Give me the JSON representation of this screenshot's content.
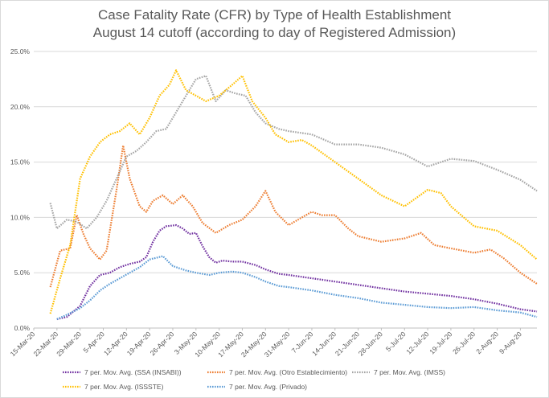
{
  "chart_data": {
    "type": "line",
    "title_line1": "Case Fatality Rate (CFR) by Type of Health Establishment",
    "title_line2": "August  14 cutoff (according to day of Registered Admission)",
    "y_tick_labels": [
      "0.0%",
      "5.0%",
      "10.0%",
      "15.0%",
      "20.0%",
      "25.0%"
    ],
    "ylim": [
      0,
      25
    ],
    "x_tick_labels": [
      "15-Mar-20",
      "22-Mar-20",
      "29-Mar-20",
      "5-Apr-20",
      "12-Apr-20",
      "19-Apr-20",
      "26-Apr-20",
      "3-May-20",
      "10-May-20",
      "17-May-20",
      "24-May-20",
      "31-May-20",
      "7-Jun-20",
      "14-Jun-20",
      "21-Jun-20",
      "28-Jun-20",
      "5-Jul-20",
      "12-Jul-20",
      "19-Jul-20",
      "26-Jul-20",
      "2-Aug-20",
      "9-Aug-20"
    ],
    "x_start": "15-Mar-20",
    "x_end": "14-Aug-20",
    "grid": "horizontal",
    "legend_position": "bottom",
    "series": [
      {
        "name": "7 per. Mov. Avg. (SSA (INSABI))",
        "color": "#7030a0",
        "points": [
          [
            "22-Mar-20",
            0.8
          ],
          [
            "25-Mar-20",
            1.0
          ],
          [
            "29-Mar-20",
            2.0
          ],
          [
            "1-Apr-20",
            3.8
          ],
          [
            "4-Apr-20",
            4.8
          ],
          [
            "7-Apr-20",
            5.0
          ],
          [
            "10-Apr-20",
            5.5
          ],
          [
            "13-Apr-20",
            5.8
          ],
          [
            "16-Apr-20",
            6.0
          ],
          [
            "18-Apr-20",
            6.4
          ],
          [
            "20-Apr-20",
            7.8
          ],
          [
            "22-Apr-20",
            8.8
          ],
          [
            "24-Apr-20",
            9.2
          ],
          [
            "27-Apr-20",
            9.3
          ],
          [
            "29-Apr-20",
            9.0
          ],
          [
            "1-May-20",
            8.5
          ],
          [
            "3-May-20",
            8.6
          ],
          [
            "5-May-20",
            7.4
          ],
          [
            "7-May-20",
            6.4
          ],
          [
            "9-May-20",
            5.9
          ],
          [
            "11-May-20",
            6.1
          ],
          [
            "14-May-20",
            6.0
          ],
          [
            "17-May-20",
            6.0
          ],
          [
            "21-May-20",
            5.7
          ],
          [
            "24-May-20",
            5.3
          ],
          [
            "28-May-20",
            4.9
          ],
          [
            "31-May-20",
            4.8
          ],
          [
            "7-Jun-20",
            4.5
          ],
          [
            "14-Jun-20",
            4.2
          ],
          [
            "21-Jun-20",
            3.9
          ],
          [
            "28-Jun-20",
            3.6
          ],
          [
            "5-Jul-20",
            3.3
          ],
          [
            "12-Jul-20",
            3.1
          ],
          [
            "19-Jul-20",
            2.9
          ],
          [
            "26-Jul-20",
            2.6
          ],
          [
            "2-Aug-20",
            2.2
          ],
          [
            "9-Aug-20",
            1.7
          ],
          [
            "14-Aug-20",
            1.5
          ]
        ]
      },
      {
        "name": "7 per. Mov. Avg. (Otro Establecimiento)",
        "color": "#ed7d31",
        "points": [
          [
            "20-Mar-20",
            3.7
          ],
          [
            "23-Mar-20",
            7.0
          ],
          [
            "26-Mar-20",
            7.2
          ],
          [
            "28-Mar-20",
            10.2
          ],
          [
            "30-Mar-20",
            8.5
          ],
          [
            "1-Apr-20",
            7.2
          ],
          [
            "4-Apr-20",
            6.2
          ],
          [
            "6-Apr-20",
            7.0
          ],
          [
            "9-Apr-20",
            12.5
          ],
          [
            "11-Apr-20",
            16.5
          ],
          [
            "13-Apr-20",
            13.5
          ],
          [
            "16-Apr-20",
            11.0
          ],
          [
            "18-Apr-20",
            10.5
          ],
          [
            "20-Apr-20",
            11.5
          ],
          [
            "23-Apr-20",
            12.0
          ],
          [
            "26-Apr-20",
            11.2
          ],
          [
            "29-Apr-20",
            12.0
          ],
          [
            "2-May-20",
            11.0
          ],
          [
            "5-May-20",
            9.5
          ],
          [
            "9-May-20",
            8.6
          ],
          [
            "13-May-20",
            9.3
          ],
          [
            "17-May-20",
            9.8
          ],
          [
            "21-May-20",
            11.0
          ],
          [
            "24-May-20",
            12.4
          ],
          [
            "27-May-20",
            10.5
          ],
          [
            "31-May-20",
            9.3
          ],
          [
            "4-Jun-20",
            10.0
          ],
          [
            "7-Jun-20",
            10.5
          ],
          [
            "10-Jun-20",
            10.2
          ],
          [
            "14-Jun-20",
            10.2
          ],
          [
            "18-Jun-20",
            9.0
          ],
          [
            "21-Jun-20",
            8.3
          ],
          [
            "28-Jun-20",
            7.8
          ],
          [
            "5-Jul-20",
            8.1
          ],
          [
            "10-Jul-20",
            8.6
          ],
          [
            "14-Jul-20",
            7.5
          ],
          [
            "19-Jul-20",
            7.2
          ],
          [
            "26-Jul-20",
            6.8
          ],
          [
            "31-Jul-20",
            7.1
          ],
          [
            "4-Aug-20",
            6.3
          ],
          [
            "9-Aug-20",
            5.0
          ],
          [
            "14-Aug-20",
            4.0
          ]
        ]
      },
      {
        "name": "7 per. Mov. Avg. (IMSS)",
        "color": "#a5a5a5",
        "points": [
          [
            "20-Mar-20",
            11.3
          ],
          [
            "22-Mar-20",
            9.0
          ],
          [
            "25-Mar-20",
            9.8
          ],
          [
            "28-Mar-20",
            9.6
          ],
          [
            "31-Mar-20",
            9.0
          ],
          [
            "3-Apr-20",
            10.0
          ],
          [
            "6-Apr-20",
            11.5
          ],
          [
            "9-Apr-20",
            13.5
          ],
          [
            "12-Apr-20",
            15.5
          ],
          [
            "15-Apr-20",
            16.0
          ],
          [
            "18-Apr-20",
            16.8
          ],
          [
            "21-Apr-20",
            17.8
          ],
          [
            "24-Apr-20",
            18.0
          ],
          [
            "27-Apr-20",
            19.5
          ],
          [
            "30-Apr-20",
            21.0
          ],
          [
            "3-May-20",
            22.5
          ],
          [
            "6-May-20",
            22.8
          ],
          [
            "9-May-20",
            20.5
          ],
          [
            "12-May-20",
            21.5
          ],
          [
            "15-May-20",
            21.2
          ],
          [
            "18-May-20",
            21.0
          ],
          [
            "21-May-20",
            19.5
          ],
          [
            "24-May-20",
            18.5
          ],
          [
            "28-May-20",
            18.0
          ],
          [
            "31-May-20",
            17.8
          ],
          [
            "7-Jun-20",
            17.5
          ],
          [
            "14-Jun-20",
            16.6
          ],
          [
            "21-Jun-20",
            16.6
          ],
          [
            "28-Jun-20",
            16.3
          ],
          [
            "5-Jul-20",
            15.7
          ],
          [
            "12-Jul-20",
            14.6
          ],
          [
            "19-Jul-20",
            15.3
          ],
          [
            "26-Jul-20",
            15.1
          ],
          [
            "2-Aug-20",
            14.3
          ],
          [
            "9-Aug-20",
            13.4
          ],
          [
            "14-Aug-20",
            12.4
          ]
        ]
      },
      {
        "name": "7 per. Mov. Avg. (ISSSTE)",
        "color": "#ffc000",
        "points": [
          [
            "20-Mar-20",
            1.3
          ],
          [
            "23-Mar-20",
            4.5
          ],
          [
            "26-Mar-20",
            7.5
          ],
          [
            "29-Mar-20",
            13.5
          ],
          [
            "1-Apr-20",
            15.5
          ],
          [
            "4-Apr-20",
            16.8
          ],
          [
            "7-Apr-20",
            17.5
          ],
          [
            "10-Apr-20",
            17.8
          ],
          [
            "13-Apr-20",
            18.5
          ],
          [
            "16-Apr-20",
            17.5
          ],
          [
            "19-Apr-20",
            19.0
          ],
          [
            "22-Apr-20",
            21.0
          ],
          [
            "25-Apr-20",
            22.0
          ],
          [
            "27-Apr-20",
            23.3
          ],
          [
            "30-Apr-20",
            21.5
          ],
          [
            "3-May-20",
            21.0
          ],
          [
            "6-May-20",
            20.5
          ],
          [
            "10-May-20",
            21.0
          ],
          [
            "14-May-20",
            22.0
          ],
          [
            "17-May-20",
            22.8
          ],
          [
            "20-May-20",
            20.5
          ],
          [
            "24-May-20",
            19.0
          ],
          [
            "27-May-20",
            17.5
          ],
          [
            "31-May-20",
            16.8
          ],
          [
            "4-Jun-20",
            17.0
          ],
          [
            "7-Jun-20",
            16.5
          ],
          [
            "14-Jun-20",
            15.0
          ],
          [
            "21-Jun-20",
            13.5
          ],
          [
            "28-Jun-20",
            12.0
          ],
          [
            "5-Jul-20",
            11.0
          ],
          [
            "12-Jul-20",
            12.5
          ],
          [
            "16-Jul-20",
            12.2
          ],
          [
            "19-Jul-20",
            11.0
          ],
          [
            "26-Jul-20",
            9.2
          ],
          [
            "2-Aug-20",
            8.8
          ],
          [
            "9-Aug-20",
            7.5
          ],
          [
            "14-Aug-20",
            6.2
          ]
        ]
      },
      {
        "name": "7 per. Mov. Avg. (Privado)",
        "color": "#5b9bd5",
        "points": [
          [
            "22-Mar-20",
            0.8
          ],
          [
            "25-Mar-20",
            1.2
          ],
          [
            "29-Mar-20",
            1.8
          ],
          [
            "1-Apr-20",
            2.5
          ],
          [
            "4-Apr-20",
            3.4
          ],
          [
            "7-Apr-20",
            4.0
          ],
          [
            "10-Apr-20",
            4.5
          ],
          [
            "13-Apr-20",
            5.0
          ],
          [
            "16-Apr-20",
            5.5
          ],
          [
            "19-Apr-20",
            6.2
          ],
          [
            "23-Apr-20",
            6.5
          ],
          [
            "26-Apr-20",
            5.6
          ],
          [
            "30-Apr-20",
            5.2
          ],
          [
            "3-May-20",
            5.0
          ],
          [
            "7-May-20",
            4.8
          ],
          [
            "10-May-20",
            5.0
          ],
          [
            "14-May-20",
            5.1
          ],
          [
            "17-May-20",
            5.0
          ],
          [
            "21-May-20",
            4.6
          ],
          [
            "24-May-20",
            4.2
          ],
          [
            "28-May-20",
            3.8
          ],
          [
            "31-May-20",
            3.7
          ],
          [
            "7-Jun-20",
            3.4
          ],
          [
            "14-Jun-20",
            3.0
          ],
          [
            "21-Jun-20",
            2.7
          ],
          [
            "28-Jun-20",
            2.3
          ],
          [
            "5-Jul-20",
            2.1
          ],
          [
            "12-Jul-20",
            1.9
          ],
          [
            "19-Jul-20",
            1.8
          ],
          [
            "26-Jul-20",
            1.9
          ],
          [
            "2-Aug-20",
            1.6
          ],
          [
            "9-Aug-20",
            1.4
          ],
          [
            "14-Aug-20",
            1.0
          ]
        ]
      }
    ]
  }
}
